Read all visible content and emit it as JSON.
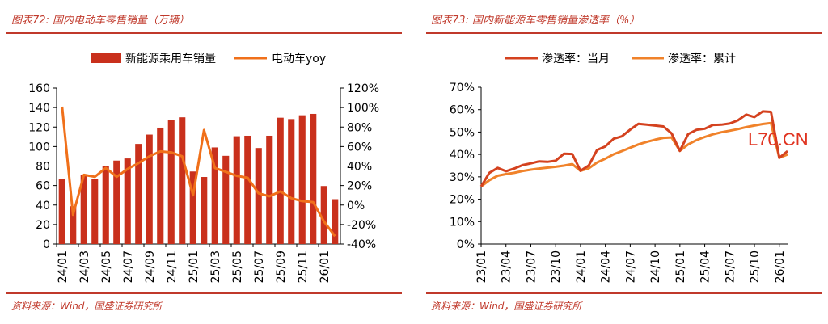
{
  "left_panel": {
    "figure_title": "图表72: 国内电动车零售销量（万辆）",
    "source": "资料来源：Wind，国盛证券研究所"
  },
  "right_panel": {
    "figure_title": "图表73: 国内新能源车零售销量渗透率（%）",
    "source": "资料来源：Wind，国盛证券研究所"
  },
  "watermark": "L70.CN",
  "colors": {
    "brand": "#c0392b",
    "bar": "#c9301c",
    "yoy": "#f0701a",
    "monthly": "#d4421f",
    "cumulative": "#f0822a"
  },
  "chart_data": [
    {
      "type": "bar",
      "title": "国内电动车零售销量（万辆）",
      "categories": [
        "24/01",
        "24/02",
        "24/03",
        "24/04",
        "24/05",
        "24/06",
        "24/07",
        "24/08",
        "24/09",
        "24/10",
        "24/11",
        "24/12",
        "25/01",
        "25/02",
        "25/03",
        "25/04",
        "25/05",
        "25/06",
        "25/07",
        "25/08",
        "25/09",
        "25/10",
        "25/11",
        "25/12",
        "26/01",
        "26/02"
      ],
      "xtick_labels": [
        "24/01",
        "24/03",
        "24/05",
        "24/07",
        "24/09",
        "24/11",
        "25/01",
        "25/03",
        "25/05",
        "25/07",
        "25/09",
        "25/11",
        "26/01"
      ],
      "series": [
        {
          "name": "新能源乘用车销量",
          "kind": "bar",
          "axis": "left",
          "values": [
            66.8,
            38.8,
            70.7,
            67.1,
            80.4,
            85.6,
            87.8,
            102.7,
            112.3,
            119.4,
            127.0,
            130.0,
            74.4,
            68.8,
            99.1,
            90.5,
            110.6,
            111.1,
            98.5,
            111.1,
            129.6,
            128.2,
            132.1,
            133.5,
            59.5,
            46.0
          ]
        },
        {
          "name": "电动车yoy",
          "kind": "line",
          "axis": "right",
          "values": [
            100.9,
            -10.0,
            31.0,
            29.0,
            38.0,
            29.0,
            37.0,
            43.0,
            50.0,
            55.0,
            54.0,
            50.0,
            10.0,
            77.0,
            38.0,
            34.0,
            30.0,
            28.0,
            12.0,
            9.0,
            14.0,
            7.0,
            4.0,
            3.0,
            -17.0,
            -32.0
          ]
        }
      ],
      "left_axis": {
        "ylim": [
          0,
          160
        ],
        "ticks": [
          "0",
          "20",
          "40",
          "60",
          "80",
          "100",
          "120",
          "140",
          "160"
        ]
      },
      "right_axis": {
        "ylim": [
          -40,
          120
        ],
        "ticks": [
          "-40%",
          "-20%",
          "0%",
          "20%",
          "40%",
          "60%",
          "80%",
          "100%",
          "120%"
        ]
      },
      "legend": [
        "新能源乘用车销量",
        "电动车yoy"
      ],
      "legend_position": "top"
    },
    {
      "type": "line",
      "title": "国内新能源车零售销量渗透率（%）",
      "x_start": "23/01",
      "xtick_labels": [
        "23/01",
        "23/04",
        "23/07",
        "23/10",
        "24/01",
        "24/04",
        "24/07",
        "24/10",
        "25/01",
        "25/04",
        "25/07",
        "25/10",
        "26/01"
      ],
      "series": [
        {
          "name": "渗透率：当月",
          "values": [
            25.7,
            31.8,
            34.0,
            32.5,
            33.7,
            35.2,
            36.0,
            36.9,
            36.7,
            37.2,
            40.3,
            40.2,
            32.7,
            35.1,
            42.0,
            43.6,
            47.0,
            48.1,
            51.1,
            53.7,
            53.3,
            52.9,
            52.5,
            49.4,
            41.6,
            49.1,
            51.0,
            51.5,
            53.2,
            53.3,
            53.8,
            55.2,
            57.8,
            56.7,
            59.2,
            59.0,
            38.5,
            41.5
          ]
        },
        {
          "name": "渗透率：累计",
          "values": [
            25.7,
            28.5,
            30.5,
            31.2,
            31.8,
            32.6,
            33.2,
            33.7,
            34.1,
            34.5,
            35.0,
            35.7,
            32.7,
            33.8,
            36.4,
            38.1,
            40.1,
            41.5,
            43.0,
            44.5,
            45.6,
            46.6,
            47.4,
            47.6,
            41.6,
            44.5,
            46.4,
            47.8,
            49.0,
            49.9,
            50.6,
            51.3,
            52.2,
            52.9,
            53.6,
            54.0,
            38.5,
            40.0
          ]
        }
      ],
      "ylim": [
        0,
        70
      ],
      "ytick_labels": [
        "0%",
        "10%",
        "20%",
        "30%",
        "40%",
        "50%",
        "60%",
        "70%"
      ],
      "legend": [
        "渗透率：当月",
        "渗透率：累计"
      ],
      "legend_position": "top"
    }
  ]
}
